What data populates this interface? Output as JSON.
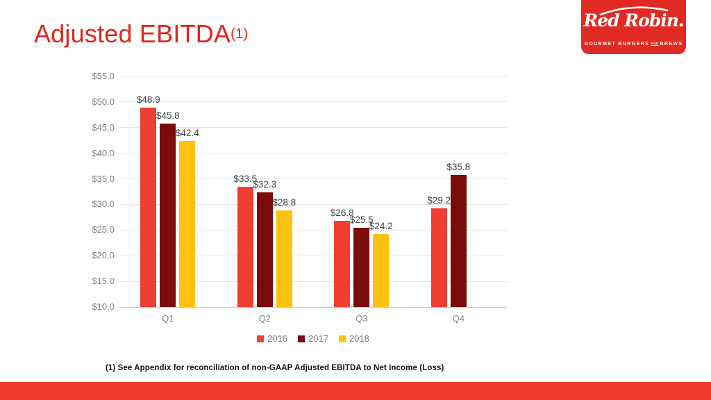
{
  "slide": {
    "title": "Adjusted EBITDA",
    "title_superscript": "(1)",
    "footnote": "(1) See Appendix for reconciliation of non-GAAP Adjusted EBITDA to Net Income (Loss)"
  },
  "logo": {
    "brand": "Red Robin.",
    "tagline_left": "GOURMET BURGERS",
    "tagline_and": "AND",
    "tagline_right": "BREWS"
  },
  "colors": {
    "title_red": "#E2241B",
    "logo_red": "#E22A25",
    "footer_red": "#EE3A2F",
    "axis_text": "#7F7F7F",
    "data_label": "#3F3F3F",
    "gridline": "#E4E4E4",
    "baseline": "#BFBFBF",
    "legend_text": "#757575"
  },
  "chart_data": {
    "type": "bar",
    "title": "",
    "xlabel": "",
    "ylabel": "",
    "categories": [
      "Q1",
      "Q2",
      "Q3",
      "Q4"
    ],
    "series": [
      {
        "name": "2016",
        "color": "#EF3E33",
        "values": [
          48.9,
          33.5,
          26.8,
          29.2
        ],
        "labels": [
          "$48.9",
          "$33.5",
          "$26.8",
          "$29.2"
        ]
      },
      {
        "name": "2017",
        "color": "#7A0C0C",
        "values": [
          45.8,
          32.3,
          25.5,
          35.8
        ],
        "labels": [
          "$45.8",
          "$32.3",
          "$25.5",
          "$35.8"
        ]
      },
      {
        "name": "2018",
        "color": "#FFC20E",
        "values": [
          42.4,
          28.8,
          24.2,
          null
        ],
        "labels": [
          "$42.4",
          "$28.8",
          "$24.2",
          null
        ]
      }
    ],
    "ylim": [
      10,
      55
    ],
    "ytick_step": 5,
    "ytick_labels": [
      "$10.0",
      "$15.0",
      "$20.0",
      "$25.0",
      "$30.0",
      "$35.0",
      "$40.0",
      "$45.0",
      "$50.0",
      "$55.0"
    ],
    "grid": true,
    "legend_position": "bottom"
  }
}
